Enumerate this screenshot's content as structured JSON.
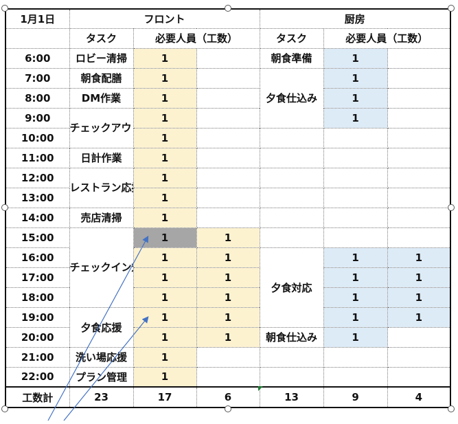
{
  "header": {
    "date": "1月1日",
    "front": "フロント",
    "kitchen": "厨房",
    "task": "タスク",
    "staff": "必要人員（工数）"
  },
  "rows": [
    {
      "time": "6:00",
      "front_task": "ロビー清掃",
      "front_staff": "1",
      "front_extra": "",
      "kitchen_task": "朝食準備",
      "kitchen_staff": "1",
      "kitchen_extra": ""
    },
    {
      "time": "7:00",
      "front_task": "朝食配膳",
      "front_staff": "1",
      "front_extra": "",
      "kitchen_task": "夕食仕込み",
      "kitchen_staff": "1",
      "kitchen_extra": ""
    },
    {
      "time": "8:00",
      "front_task": "DM作業",
      "front_staff": "1",
      "front_extra": "",
      "kitchen_task": "",
      "kitchen_staff": "1",
      "kitchen_extra": ""
    },
    {
      "time": "9:00",
      "front_task": "チェックアウト",
      "front_staff": "1",
      "front_extra": "",
      "kitchen_task": "",
      "kitchen_staff": "1",
      "kitchen_extra": ""
    },
    {
      "time": "10:00",
      "front_task": "",
      "front_staff": "1",
      "front_extra": "",
      "kitchen_task": "",
      "kitchen_staff": "",
      "kitchen_extra": ""
    },
    {
      "time": "11:00",
      "front_task": "日計作業",
      "front_staff": "1",
      "front_extra": "",
      "kitchen_task": "",
      "kitchen_staff": "",
      "kitchen_extra": ""
    },
    {
      "time": "12:00",
      "front_task": "レストラン応援",
      "front_staff": "1",
      "front_extra": "",
      "kitchen_task": "",
      "kitchen_staff": "",
      "kitchen_extra": ""
    },
    {
      "time": "13:00",
      "front_task": "",
      "front_staff": "1",
      "front_extra": "",
      "kitchen_task": "",
      "kitchen_staff": "",
      "kitchen_extra": ""
    },
    {
      "time": "14:00",
      "front_task": "売店清掃",
      "front_staff": "1",
      "front_extra": "",
      "kitchen_task": "",
      "kitchen_staff": "",
      "kitchen_extra": ""
    },
    {
      "time": "15:00",
      "front_task": "チェックイン対応",
      "front_staff": "1",
      "front_extra": "1",
      "kitchen_task": "",
      "kitchen_staff": "",
      "kitchen_extra": ""
    },
    {
      "time": "16:00",
      "front_task": "",
      "front_staff": "1",
      "front_extra": "1",
      "kitchen_task": "夕食対応",
      "kitchen_staff": "1",
      "kitchen_extra": "1"
    },
    {
      "time": "17:00",
      "front_task": "",
      "front_staff": "1",
      "front_extra": "1",
      "kitchen_task": "",
      "kitchen_staff": "1",
      "kitchen_extra": "1"
    },
    {
      "time": "18:00",
      "front_task": "",
      "front_staff": "1",
      "front_extra": "1",
      "kitchen_task": "",
      "kitchen_staff": "1",
      "kitchen_extra": "1"
    },
    {
      "time": "19:00",
      "front_task": "夕食応援",
      "front_staff": "1",
      "front_extra": "1",
      "kitchen_task": "",
      "kitchen_staff": "1",
      "kitchen_extra": "1"
    },
    {
      "time": "20:00",
      "front_task": "",
      "front_staff": "1",
      "front_extra": "1",
      "kitchen_task": "朝食仕込み",
      "kitchen_staff": "1",
      "kitchen_extra": ""
    },
    {
      "time": "21:00",
      "front_task": "洗い場応援",
      "front_staff": "1",
      "front_extra": "",
      "kitchen_task": "",
      "kitchen_staff": "",
      "kitchen_extra": ""
    },
    {
      "time": "22:00",
      "front_task": "プラン管理",
      "front_staff": "1",
      "front_extra": "",
      "kitchen_task": "",
      "kitchen_staff": "",
      "kitchen_extra": ""
    }
  ],
  "footer": {
    "label": "工数計",
    "front_task": "23",
    "front_staff": "17",
    "front_extra": "6",
    "kitchen_task": "13",
    "kitchen_staff": "9",
    "kitchen_extra": "4"
  },
  "colors": {
    "front_fill": "#fdf2d0",
    "kitchen_fill": "#ddebf7",
    "selected_fill": "#a6a6a6",
    "arrow": "#4472c4"
  }
}
